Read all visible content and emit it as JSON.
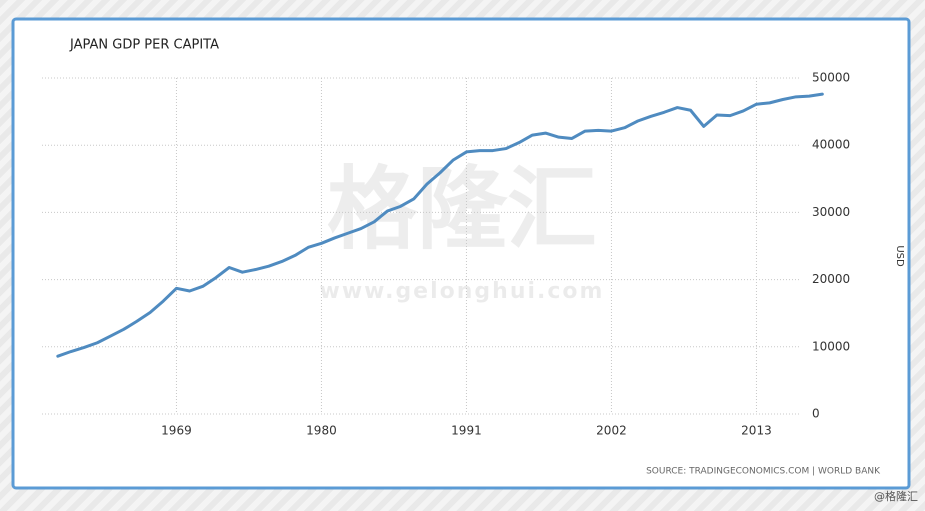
{
  "chart_data": {
    "type": "line",
    "title": "JAPAN GDP PER CAPITA",
    "y_label": "USD",
    "source": "SOURCE: TRADINGECONOMICS.COM | WORLD BANK",
    "watermark": "格隆汇",
    "watermark_url": "www.gelonghui.com",
    "corner_mark": "@格隆汇",
    "x": [
      1960,
      1961,
      1962,
      1963,
      1964,
      1965,
      1966,
      1967,
      1968,
      1969,
      1970,
      1971,
      1972,
      1973,
      1974,
      1975,
      1976,
      1977,
      1978,
      1979,
      1980,
      1981,
      1982,
      1983,
      1984,
      1985,
      1986,
      1987,
      1988,
      1989,
      1990,
      1991,
      1992,
      1993,
      1994,
      1995,
      1996,
      1997,
      1998,
      1999,
      2000,
      2001,
      2002,
      2003,
      2004,
      2005,
      2006,
      2007,
      2008,
      2009,
      2010,
      2011,
      2012,
      2013,
      2014,
      2015,
      2016,
      2017,
      2018
    ],
    "series": [
      {
        "name": "GDP per capita",
        "color": "#4f8bc0",
        "values": [
          8600,
          9300,
          9900,
          10600,
          11600,
          12600,
          13800,
          15100,
          16800,
          18700,
          18300,
          19000,
          20300,
          21800,
          21100,
          21500,
          22000,
          22700,
          23600,
          24800,
          25400,
          26200,
          26900,
          27600,
          28600,
          30200,
          30900,
          32000,
          34200,
          35900,
          37800,
          39000,
          39200,
          39200,
          39500,
          40400,
          41500,
          41800,
          41200,
          41000,
          42100,
          42200,
          42100,
          42600,
          43600,
          44300,
          44900,
          45600,
          45200,
          42800,
          44500,
          44400,
          45100,
          46100,
          46300,
          46800,
          47200,
          47300,
          47600
        ]
      }
    ],
    "xlim": [
      1958.8,
      2018.2
    ],
    "xticks": [
      1969,
      1980,
      1991,
      2002,
      2013
    ],
    "ylim": [
      0,
      50000
    ],
    "yticks": [
      0,
      10000,
      20000,
      30000,
      40000,
      50000
    ],
    "grid": true
  }
}
